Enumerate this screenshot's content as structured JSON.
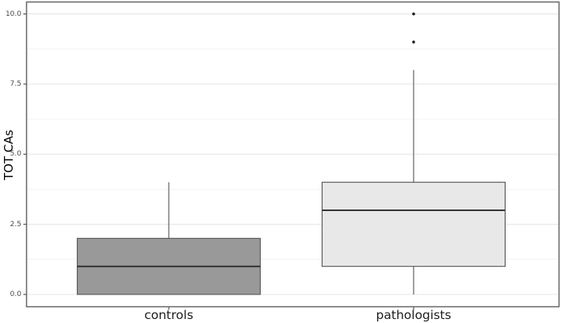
{
  "chart_data": {
    "type": "boxplot",
    "title": "",
    "xlabel": "",
    "ylabel": "TOT CAs",
    "categories": [
      "controls",
      "pathologists"
    ],
    "ylim": [
      0,
      10
    ],
    "y_ticks": [
      0.0,
      2.5,
      5.0,
      7.5,
      10.0
    ],
    "y_tick_labels": [
      "0.0",
      "2.5",
      "5.0",
      "7.5",
      "10.0"
    ],
    "y_minor_ticks": [
      1.25,
      3.75,
      6.25,
      8.75
    ],
    "grid": "horizontal major + minor, no vertical grid",
    "legend": "none",
    "series": [
      {
        "name": "controls",
        "min": 0,
        "q1": 0,
        "median": 1,
        "q3": 2,
        "max": 4,
        "outliers": [],
        "fill": "#999999"
      },
      {
        "name": "pathologists",
        "min": 0,
        "q1": 1,
        "median": 3,
        "q3": 4,
        "max": 8,
        "outliers": [
          9,
          10
        ],
        "fill": "#e8e8e8"
      }
    ],
    "colors": {
      "background": "#ffffff",
      "panel_background": "#ffffff",
      "panel_border": "#666666",
      "grid_major": "#e6e6e6",
      "grid_minor": "#f0f0f0",
      "box_border": "#545454",
      "whisker": "#545454",
      "median_line": "#2b2b2b",
      "outlier": "#1f1f1f",
      "axis_tick": "#333333",
      "tick_label_text": "#4a4a4a",
      "category_label_text": "#1c1c1c",
      "axis_title_text": "#000000"
    }
  }
}
